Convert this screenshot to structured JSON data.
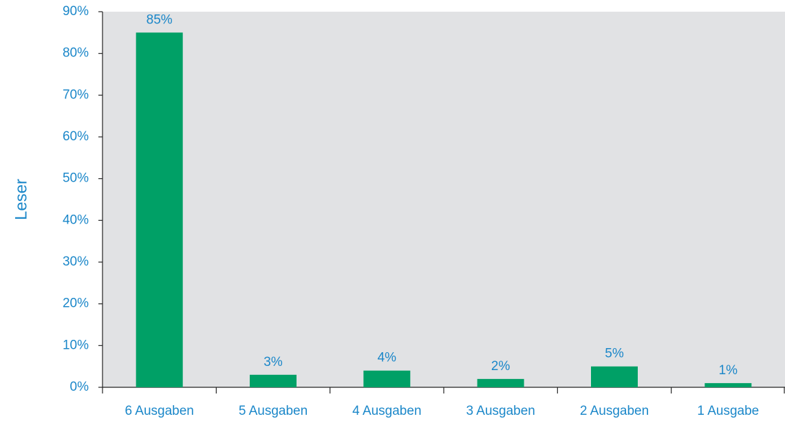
{
  "chart_data": {
    "type": "bar",
    "ylabel": "Leser",
    "categories": [
      "6 Ausgaben",
      "5 Ausgaben",
      "4 Ausgaben",
      "3 Ausgaben",
      "2 Ausgaben",
      "1 Ausgabe"
    ],
    "values": [
      85,
      3,
      4,
      2,
      5,
      1
    ],
    "value_labels": [
      "85%",
      "3%",
      "4%",
      "2%",
      "5%",
      "1%"
    ],
    "color": "#00a066",
    "ylim": [
      0,
      90
    ],
    "yticks": [
      {
        "value": 0,
        "label": "0%"
      },
      {
        "value": 10,
        "label": "10%"
      },
      {
        "value": 20,
        "label": "20%"
      },
      {
        "value": 30,
        "label": "30%"
      },
      {
        "value": 40,
        "label": "40%"
      },
      {
        "value": 50,
        "label": "50%"
      },
      {
        "value": 60,
        "label": "60%"
      },
      {
        "value": 70,
        "label": "70%"
      },
      {
        "value": 80,
        "label": "80%"
      },
      {
        "value": 90,
        "label": "90%"
      }
    ],
    "grid": false
  }
}
